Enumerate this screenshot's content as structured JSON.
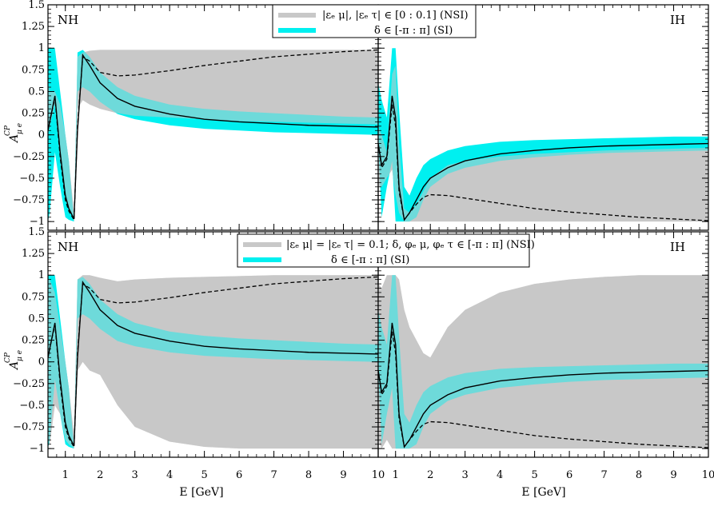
{
  "colors": {
    "nsi_band": "#c8c8c8",
    "si_band": "#00f0f0",
    "overlap": "#a8cfcf",
    "line": "#000000"
  },
  "y_axis": {
    "label_main": "A",
    "label_sup": "CP",
    "label_sub": "μ e",
    "ticks": [
      1.5,
      1.25,
      1,
      0.75,
      0.5,
      0.25,
      0,
      -0.25,
      -0.5,
      -0.75,
      -1
    ],
    "tick_labels": [
      "1.5",
      "1.25",
      "1",
      "0.75",
      "0.5",
      "0.25",
      "0",
      "−0.25",
      "−0.5",
      "−0.75",
      "−1"
    ]
  },
  "x_axis": {
    "title": "E [GeV]",
    "ticks": [
      1,
      2,
      3,
      4,
      5,
      6,
      7,
      8,
      9,
      10
    ],
    "tick_labels": [
      "1",
      "2",
      "3",
      "4",
      "5",
      "6",
      "7",
      "8",
      "9",
      "10"
    ],
    "range": [
      0.5,
      10
    ]
  },
  "legends": {
    "top": {
      "nsi": "|εₑ μ|, |εₑ τ| ∈ [0 : 0.1] (NSI)",
      "si": "δ ∈ [-π : π] (SI)"
    },
    "bottom": {
      "nsi": "|εₑ μ| = |εₑ τ| = 0.1;  δ, φₑ μ, φₑ τ ∈ [-π : π] (NSI)",
      "si": "δ ∈ [-π : π] (SI)"
    }
  },
  "panels": {
    "top_left": {
      "label": "NH"
    },
    "top_right": {
      "label": "IH"
    },
    "bottom_left": {
      "label": "NH"
    },
    "bottom_right": {
      "label": "IH"
    }
  },
  "chart_data": [
    {
      "type": "area",
      "panel": "top-left",
      "ylim": [
        -1.1,
        1.5
      ],
      "xlim": [
        0.5,
        10
      ],
      "x": [
        0.5,
        0.55,
        0.7,
        0.85,
        1.0,
        1.1,
        1.25,
        1.35,
        1.5,
        1.7,
        2.0,
        2.5,
        3,
        4,
        5,
        6,
        7,
        8,
        9,
        10
      ],
      "si_upper": [
        1.0,
        1.0,
        1.0,
        0.5,
        0.0,
        -0.3,
        -1.0,
        0.95,
        0.98,
        0.9,
        0.72,
        0.55,
        0.45,
        0.35,
        0.3,
        0.27,
        0.25,
        0.23,
        0.21,
        0.2
      ],
      "si_lower": [
        -1.0,
        -0.9,
        -0.2,
        -0.6,
        -0.95,
        -0.98,
        -1.0,
        0.5,
        0.55,
        0.5,
        0.38,
        0.24,
        0.18,
        0.11,
        0.07,
        0.05,
        0.03,
        0.02,
        0.01,
        0.0
      ],
      "nsi_upper": [
        0.6,
        0.5,
        0.5,
        0.35,
        0.0,
        -0.3,
        -0.9,
        0.9,
        0.95,
        0.97,
        0.98,
        0.98,
        0.98,
        0.98,
        0.98,
        0.98,
        0.98,
        0.98,
        0.98,
        0.98
      ],
      "nsi_lower": [
        0.0,
        0.1,
        0.35,
        -0.3,
        -0.75,
        -0.85,
        -1.0,
        0.3,
        0.4,
        0.35,
        0.3,
        0.25,
        0.22,
        0.2,
        0.18,
        0.16,
        0.15,
        0.14,
        0.13,
        0.12
      ],
      "solid": [
        0.05,
        0.15,
        0.45,
        -0.2,
        -0.7,
        -0.85,
        -0.97,
        0.05,
        0.92,
        0.8,
        0.6,
        0.42,
        0.33,
        0.24,
        0.18,
        0.15,
        0.13,
        0.11,
        0.1,
        0.09
      ],
      "dashed": [
        0.05,
        0.15,
        0.43,
        -0.25,
        -0.75,
        -0.88,
        -0.98,
        0.1,
        0.9,
        0.85,
        0.72,
        0.68,
        0.69,
        0.74,
        0.8,
        0.85,
        0.9,
        0.93,
        0.96,
        0.98
      ]
    },
    {
      "type": "area",
      "panel": "top-right",
      "ylim": [
        -1.1,
        1.5
      ],
      "xlim": [
        0.5,
        10
      ],
      "x": [
        0.5,
        0.6,
        0.75,
        0.9,
        1.0,
        1.1,
        1.25,
        1.4,
        1.6,
        1.8,
        2.0,
        2.5,
        3,
        4,
        5,
        6,
        7,
        8,
        9,
        10
      ],
      "si_upper": [
        0.6,
        0.4,
        0.2,
        1.0,
        1.0,
        0.3,
        -0.6,
        -0.7,
        -0.5,
        -0.35,
        -0.28,
        -0.18,
        -0.13,
        -0.08,
        -0.06,
        -0.05,
        -0.04,
        -0.03,
        -0.02,
        -0.02
      ],
      "si_lower": [
        -0.1,
        -0.95,
        -0.6,
        -0.3,
        -1.0,
        -1.0,
        -1.0,
        -1.0,
        -0.95,
        -0.75,
        -0.6,
        -0.45,
        -0.38,
        -0.3,
        -0.26,
        -0.23,
        -0.21,
        -0.2,
        -0.19,
        -0.18
      ],
      "nsi_upper": [
        0.1,
        0.0,
        -0.2,
        0.7,
        0.8,
        -0.1,
        -0.85,
        -0.9,
        -0.8,
        -0.65,
        -0.5,
        -0.35,
        -0.3,
        -0.25,
        -0.22,
        -0.2,
        -0.18,
        -0.17,
        -0.16,
        -0.15
      ],
      "nsi_lower": [
        -0.6,
        -0.6,
        -0.5,
        -0.4,
        -0.7,
        -0.9,
        -1.0,
        -1.0,
        -1.0,
        -1.0,
        -1.0,
        -1.0,
        -1.0,
        -1.0,
        -1.0,
        -1.0,
        -1.0,
        -1.0,
        -1.0,
        -1.0
      ],
      "solid": [
        -0.1,
        -0.35,
        -0.25,
        0.45,
        0.2,
        -0.6,
        -0.98,
        -0.9,
        -0.75,
        -0.6,
        -0.5,
        -0.38,
        -0.3,
        -0.22,
        -0.18,
        -0.15,
        -0.13,
        -0.12,
        -0.11,
        -0.1
      ],
      "dashed": [
        -0.1,
        -0.38,
        -0.28,
        0.35,
        0.1,
        -0.65,
        -0.98,
        -0.9,
        -0.8,
        -0.72,
        -0.69,
        -0.7,
        -0.73,
        -0.79,
        -0.85,
        -0.89,
        -0.92,
        -0.95,
        -0.97,
        -0.99
      ]
    },
    {
      "type": "area",
      "panel": "bottom-left",
      "ylim": [
        -1.1,
        1.5
      ],
      "xlim": [
        0.5,
        10
      ],
      "x": [
        0.5,
        0.55,
        0.7,
        0.85,
        1.0,
        1.1,
        1.25,
        1.35,
        1.5,
        1.7,
        2.0,
        2.5,
        3,
        4,
        5,
        6,
        7,
        8,
        9,
        10
      ],
      "si_upper": [
        1.0,
        1.0,
        1.0,
        0.5,
        0.0,
        -0.3,
        -1.0,
        0.95,
        0.98,
        0.9,
        0.72,
        0.55,
        0.45,
        0.35,
        0.3,
        0.27,
        0.25,
        0.23,
        0.21,
        0.2
      ],
      "si_lower": [
        -1.0,
        -0.9,
        -0.2,
        -0.6,
        -0.95,
        -0.98,
        -1.0,
        0.5,
        0.55,
        0.5,
        0.38,
        0.24,
        0.18,
        0.11,
        0.07,
        0.05,
        0.03,
        0.02,
        0.01,
        0.0
      ],
      "nsi_upper": [
        0.95,
        0.95,
        0.8,
        0.4,
        0.0,
        -0.3,
        -0.85,
        0.95,
        1.0,
        1.0,
        0.97,
        0.93,
        0.95,
        0.97,
        0.98,
        0.99,
        1.0,
        1.0,
        1.0,
        1.0
      ],
      "nsi_lower": [
        -0.9,
        -0.95,
        -0.5,
        -0.6,
        -0.9,
        -0.95,
        -1.0,
        -0.1,
        0.0,
        -0.1,
        -0.15,
        -0.5,
        -0.75,
        -0.92,
        -0.98,
        -1.0,
        -1.0,
        -1.0,
        -1.0,
        -1.0
      ],
      "solid": [
        0.05,
        0.15,
        0.45,
        -0.2,
        -0.7,
        -0.85,
        -0.97,
        0.05,
        0.92,
        0.8,
        0.6,
        0.42,
        0.33,
        0.24,
        0.18,
        0.15,
        0.13,
        0.11,
        0.1,
        0.09
      ],
      "dashed": [
        0.05,
        0.15,
        0.43,
        -0.25,
        -0.75,
        -0.88,
        -0.98,
        0.1,
        0.9,
        0.85,
        0.72,
        0.68,
        0.69,
        0.74,
        0.8,
        0.85,
        0.9,
        0.93,
        0.96,
        0.98
      ]
    },
    {
      "type": "area",
      "panel": "bottom-right",
      "ylim": [
        -1.1,
        1.5
      ],
      "xlim": [
        0.5,
        10
      ],
      "x": [
        0.5,
        0.6,
        0.75,
        0.9,
        1.0,
        1.1,
        1.25,
        1.4,
        1.6,
        1.8,
        2.0,
        2.5,
        3,
        4,
        5,
        6,
        7,
        8,
        9,
        10
      ],
      "si_upper": [
        0.6,
        0.4,
        0.2,
        1.0,
        1.0,
        0.3,
        -0.6,
        -0.7,
        -0.5,
        -0.35,
        -0.28,
        -0.18,
        -0.13,
        -0.08,
        -0.06,
        -0.05,
        -0.04,
        -0.03,
        -0.02,
        -0.02
      ],
      "si_lower": [
        -0.1,
        -0.95,
        -0.6,
        -0.3,
        -1.0,
        -1.0,
        -1.0,
        -1.0,
        -0.95,
        -0.75,
        -0.6,
        -0.45,
        -0.38,
        -0.3,
        -0.26,
        -0.23,
        -0.21,
        -0.2,
        -0.19,
        -0.18
      ],
      "nsi_upper": [
        0.9,
        0.85,
        1.0,
        1.0,
        1.0,
        0.95,
        0.6,
        0.4,
        0.25,
        0.1,
        0.05,
        0.4,
        0.6,
        0.8,
        0.9,
        0.95,
        0.98,
        1.0,
        1.0,
        1.0
      ],
      "nsi_lower": [
        -0.9,
        -1.0,
        -0.9,
        -1.0,
        -1.0,
        -1.0,
        -1.0,
        -1.0,
        -1.0,
        -1.0,
        -1.0,
        -1.0,
        -1.0,
        -1.0,
        -1.0,
        -1.0,
        -1.0,
        -1.0,
        -1.0,
        -1.0
      ],
      "solid": [
        -0.1,
        -0.35,
        -0.25,
        0.45,
        0.2,
        -0.6,
        -0.98,
        -0.9,
        -0.75,
        -0.6,
        -0.5,
        -0.38,
        -0.3,
        -0.22,
        -0.18,
        -0.15,
        -0.13,
        -0.12,
        -0.11,
        -0.1
      ],
      "dashed": [
        -0.1,
        -0.38,
        -0.28,
        0.35,
        0.1,
        -0.65,
        -0.98,
        -0.9,
        -0.8,
        -0.72,
        -0.69,
        -0.7,
        -0.73,
        -0.79,
        -0.85,
        -0.89,
        -0.92,
        -0.95,
        -0.97,
        -0.99
      ]
    }
  ]
}
